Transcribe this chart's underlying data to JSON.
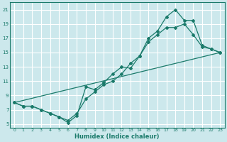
{
  "bg_color": "#cce8ec",
  "grid_color": "#ffffff",
  "line_color": "#1a7a6a",
  "line1_x": [
    0,
    1,
    2,
    3,
    4,
    5,
    6,
    7,
    8,
    9,
    10,
    11,
    12,
    13,
    14,
    15,
    16,
    17,
    18,
    19,
    20,
    21,
    22,
    23
  ],
  "line1_y": [
    8.0,
    7.5,
    7.5,
    7.0,
    6.5,
    6.0,
    5.2,
    6.2,
    10.2,
    9.8,
    10.8,
    12.0,
    13.0,
    12.8,
    14.5,
    17.0,
    18.0,
    20.0,
    21.0,
    19.5,
    19.5,
    16.0,
    15.5,
    15.0
  ],
  "line2_x": [
    0,
    1,
    2,
    3,
    4,
    5,
    6,
    7,
    8,
    9,
    10,
    11,
    12,
    13,
    14,
    15,
    16,
    17,
    18,
    19,
    20,
    21,
    22,
    23
  ],
  "line2_y": [
    8.0,
    7.5,
    7.5,
    7.0,
    6.5,
    6.0,
    5.5,
    6.5,
    8.5,
    9.5,
    10.5,
    11.0,
    12.0,
    13.5,
    14.5,
    16.5,
    17.5,
    18.5,
    18.5,
    19.0,
    17.5,
    15.8,
    15.5,
    15.0
  ],
  "line3_x": [
    0,
    23
  ],
  "line3_y": [
    8.0,
    15.0
  ],
  "xlabel": "Humidex (Indice chaleur)",
  "ylim": [
    4.5,
    22
  ],
  "xlim": [
    -0.5,
    23.5
  ],
  "yticks": [
    5,
    7,
    9,
    11,
    13,
    15,
    17,
    19,
    21
  ],
  "xticks": [
    0,
    1,
    2,
    3,
    4,
    5,
    6,
    7,
    8,
    9,
    10,
    11,
    12,
    13,
    14,
    15,
    16,
    17,
    18,
    19,
    20,
    21,
    22,
    23
  ]
}
